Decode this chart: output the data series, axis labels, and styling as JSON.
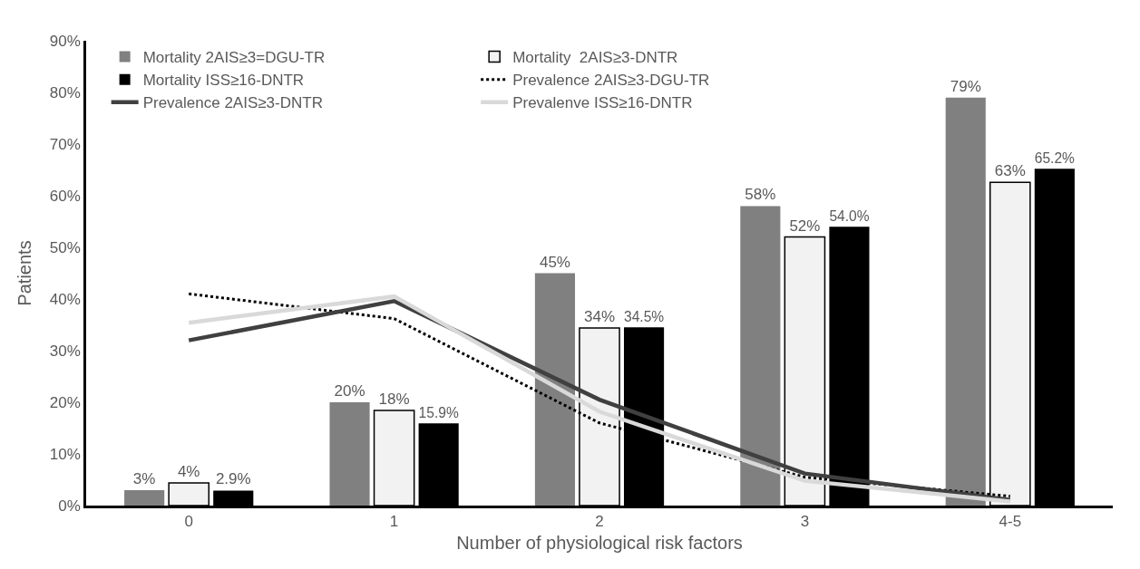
{
  "chart_data": {
    "type": "bar",
    "xlabel": "Number of physiological risk factors",
    "ylabel": "Patients",
    "categories": [
      "0",
      "1",
      "2",
      "3",
      "4-5"
    ],
    "series": [
      {
        "name": "Mortality 2AIS≥3=DGU-TR",
        "color": "#808080",
        "values": [
          3,
          20,
          45,
          58,
          79
        ],
        "value_labels": [
          "3%",
          "20%",
          "45%",
          "58%",
          "79%"
        ]
      },
      {
        "name": "Mortality  2AIS≥3-DNTR",
        "color": "#f2f2f2",
        "values": [
          4.4,
          18.4,
          34.4,
          52,
          62.6
        ],
        "value_labels": [
          "4%",
          "18%",
          "34%",
          "52%",
          "63%"
        ]
      },
      {
        "name": "Mortality ISS≥16-DNTR",
        "color": "#000000",
        "values": [
          2.9,
          15.9,
          34.5,
          54.0,
          65.2
        ],
        "value_labels": [
          "2.9%",
          "15.9%",
          "34.5%",
          "54.0%",
          "65.2%"
        ]
      },
      {
        "name": "Prevalence 2AIS≥3-DGU-TR",
        "type": "line",
        "color": "#000000",
        "line_style": "dotted",
        "values": [
          41,
          36.2,
          16,
          5.5,
          1.8
        ]
      },
      {
        "name": "Prevalence 2AIS≥3-DNTR",
        "type": "line",
        "color": "#404040",
        "line_style": "solid",
        "values": [
          32,
          39.6,
          20.5,
          6.2,
          1.1
        ]
      },
      {
        "name": "Prevalenve ISS≥16-DNTR",
        "type": "line",
        "color": "#d9d9d9",
        "line_style": "solid",
        "values": [
          35.4,
          40.5,
          18.2,
          4.8,
          0.8
        ]
      }
    ],
    "ylim": [
      0,
      90
    ],
    "yticks": [
      {
        "value": 0,
        "label": "0%"
      },
      {
        "value": 10,
        "label": "10%"
      },
      {
        "value": 20,
        "label": "20%"
      },
      {
        "value": 30,
        "label": "30%"
      },
      {
        "value": 40,
        "label": "40%"
      },
      {
        "value": 50,
        "label": "50%"
      },
      {
        "value": 60,
        "label": "60%"
      },
      {
        "value": 70,
        "label": "70%"
      },
      {
        "value": 80,
        "label": "80%"
      },
      {
        "value": 90,
        "label": "90%"
      }
    ],
    "grid": false,
    "legend": "top left",
    "marker": "none"
  }
}
